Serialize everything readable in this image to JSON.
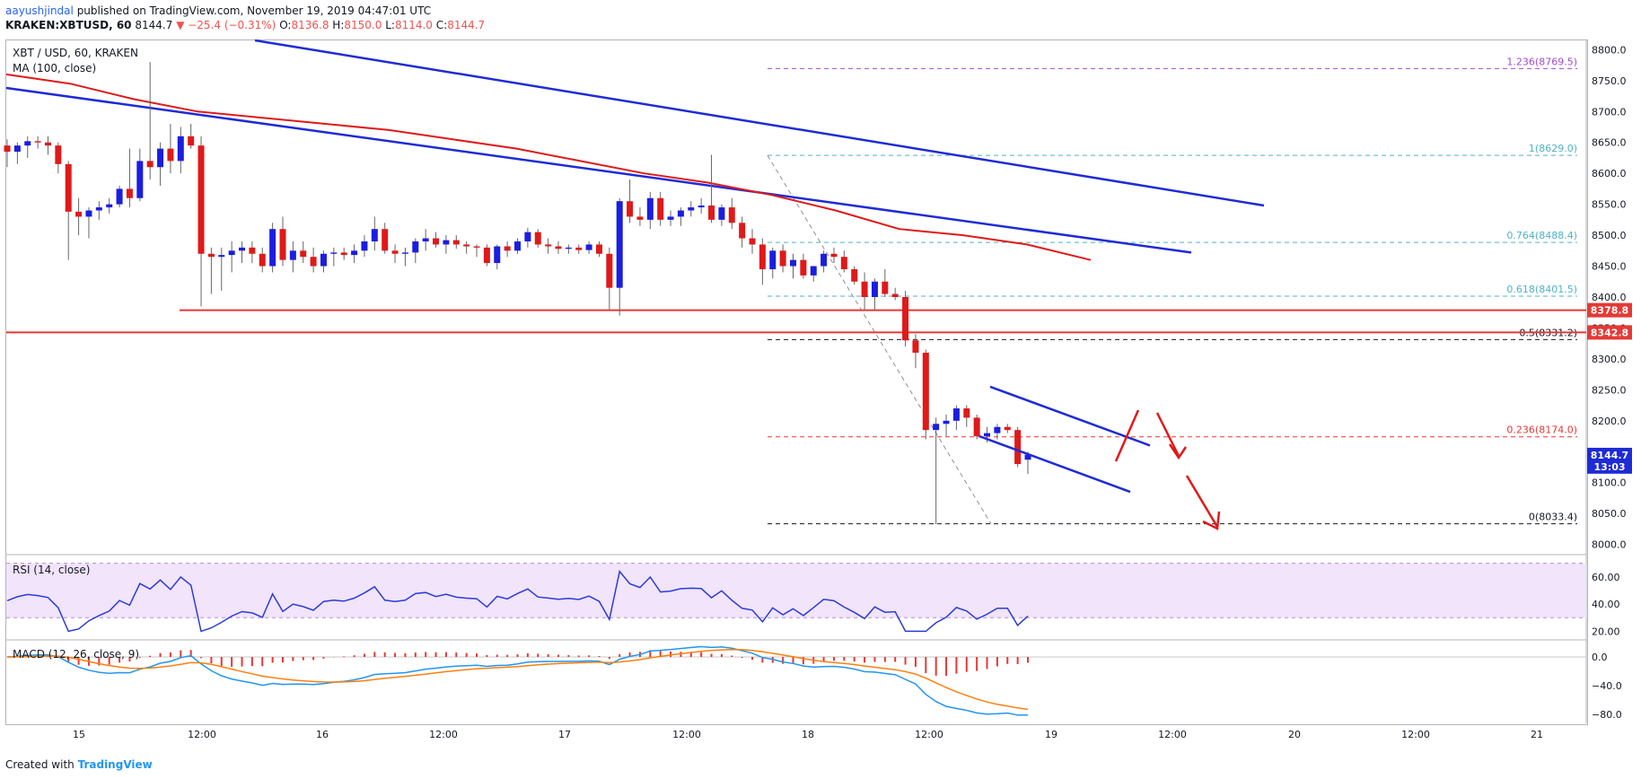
{
  "header": {
    "username": "aayushjindal",
    "published": "published on TradingView.com, November 19, 2019 04:47:01 UTC",
    "symbol": "KRAKEN:XBTUSD, 60",
    "last": "8144.7",
    "change": "▼ −25.4 (−0.31%)",
    "o_label": "O:",
    "o": "8136.8",
    "h_label": "H:",
    "h": "8150.0",
    "l_label": "L:",
    "l": "8114.0",
    "c_label": "C:",
    "c": "8144.7"
  },
  "legend": {
    "symbol": "XBT / USD, 60, KRAKEN",
    "ma": "MA (100, close)",
    "rsi": "RSI (14, close)",
    "macd": "MACD (12, 26, close, 9)"
  },
  "footer": {
    "created_with": "Created with",
    "brand": "TradingView"
  },
  "colors": {
    "up": "#1a1ee0",
    "down": "#e01919",
    "ma": "#e01919",
    "trend": "#1e2bd6",
    "fib_blue": "#4fb3c4",
    "fib_red": "#e53935",
    "fib_purple": "#a24ad0",
    "rsi_line": "#2b3bd8",
    "rsi_band": "#f1e4fb",
    "macd": "#2196f3",
    "signal": "#ff7f0e",
    "hist": "#e53935"
  },
  "chart_data": {
    "type": "candlestick",
    "symbol": "XBT / USD, 60, KRAKEN",
    "time_labels": [
      "15",
      "12:00",
      "16",
      "12:00",
      "17",
      "12:00",
      "18",
      "12:00",
      "19",
      "12:00",
      "20",
      "12:00",
      "21"
    ],
    "price_ticks": [
      "8800.0",
      "8750.0",
      "8700.0",
      "8650.0",
      "8600.0",
      "8550.0",
      "8500.0",
      "8450.0",
      "8400.0",
      "8350.0",
      "8300.0",
      "8250.0",
      "8200.0",
      "8150.0",
      "8100.0",
      "8050.0",
      "8000.0"
    ],
    "price_range": [
      7985,
      8815
    ],
    "price_labels": [
      {
        "text": "8378.8",
        "value": 8378.8,
        "color": "#e53935"
      },
      {
        "text": "8342.8",
        "value": 8342.8,
        "color": "#e53935"
      },
      {
        "text": "8144.7",
        "value": 8144.7,
        "color": "#1e2bd6"
      },
      {
        "text": "13:03",
        "value": 8126.0,
        "color": "#1e2bd6"
      }
    ],
    "fib_levels": [
      {
        "label": "1.236(8769.5)",
        "value": 8769.5,
        "color": "#a24ad0"
      },
      {
        "label": "1(8629.0)",
        "value": 8629.0,
        "color": "#4fb3c4"
      },
      {
        "label": "0.764(8488.4)",
        "value": 8488.4,
        "color": "#4fb3c4"
      },
      {
        "label": "0.618(8401.5)",
        "value": 8401.5,
        "color": "#4fb3c4"
      },
      {
        "label": "0.5(8331.2)",
        "value": 8331.2,
        "color": "#131722"
      },
      {
        "label": "0.236(8174.0)",
        "value": 8174.0,
        "color": "#e53935"
      },
      {
        "label": "0(8033.4)",
        "value": 8033.4,
        "color": "#131722"
      }
    ],
    "horizontal_lines": [
      8378.8,
      8342.8
    ],
    "candles": [
      [
        8645,
        8655,
        8610,
        8635
      ],
      [
        8635,
        8650,
        8615,
        8645
      ],
      [
        8645,
        8660,
        8625,
        8652
      ],
      [
        8652,
        8660,
        8640,
        8650
      ],
      [
        8650,
        8660,
        8630,
        8645
      ],
      [
        8645,
        8650,
        8600,
        8615
      ],
      [
        8615,
        8620,
        8460,
        8538
      ],
      [
        8538,
        8560,
        8500,
        8530
      ],
      [
        8530,
        8545,
        8495,
        8540
      ],
      [
        8540,
        8555,
        8525,
        8545
      ],
      [
        8545,
        8560,
        8535,
        8550
      ],
      [
        8550,
        8580,
        8545,
        8575
      ],
      [
        8575,
        8640,
        8545,
        8560
      ],
      [
        8560,
        8640,
        8555,
        8620
      ],
      [
        8620,
        8780,
        8590,
        8610
      ],
      [
        8610,
        8650,
        8580,
        8640
      ],
      [
        8640,
        8680,
        8600,
        8620
      ],
      [
        8620,
        8675,
        8600,
        8660
      ],
      [
        8660,
        8680,
        8640,
        8645
      ],
      [
        8645,
        8660,
        8385,
        8470
      ],
      [
        8470,
        8480,
        8405,
        8465
      ],
      [
        8465,
        8480,
        8410,
        8468
      ],
      [
        8468,
        8490,
        8440,
        8475
      ],
      [
        8475,
        8490,
        8455,
        8480
      ],
      [
        8480,
        8490,
        8455,
        8470
      ],
      [
        8470,
        8480,
        8440,
        8450
      ],
      [
        8450,
        8520,
        8440,
        8510
      ],
      [
        8510,
        8530,
        8450,
        8460
      ],
      [
        8460,
        8490,
        8440,
        8475
      ],
      [
        8475,
        8490,
        8455,
        8465
      ],
      [
        8465,
        8480,
        8440,
        8450
      ],
      [
        8450,
        8475,
        8440,
        8470
      ],
      [
        8470,
        8480,
        8450,
        8472
      ],
      [
        8472,
        8480,
        8460,
        8468
      ],
      [
        8468,
        8485,
        8455,
        8475
      ],
      [
        8475,
        8500,
        8465,
        8490
      ],
      [
        8490,
        8530,
        8475,
        8510
      ],
      [
        8510,
        8520,
        8470,
        8475
      ],
      [
        8475,
        8485,
        8455,
        8470
      ],
      [
        8470,
        8480,
        8450,
        8472
      ],
      [
        8472,
        8495,
        8455,
        8490
      ],
      [
        8490,
        8510,
        8475,
        8495
      ],
      [
        8495,
        8505,
        8480,
        8485
      ],
      [
        8485,
        8500,
        8470,
        8492
      ],
      [
        8492,
        8500,
        8478,
        8485
      ],
      [
        8485,
        8490,
        8470,
        8482
      ],
      [
        8482,
        8485,
        8465,
        8480
      ],
      [
        8480,
        8485,
        8450,
        8455
      ],
      [
        8455,
        8485,
        8445,
        8482
      ],
      [
        8482,
        8490,
        8465,
        8475
      ],
      [
        8475,
        8495,
        8470,
        8490
      ],
      [
        8490,
        8512,
        8480,
        8505
      ],
      [
        8505,
        8510,
        8480,
        8485
      ],
      [
        8485,
        8495,
        8470,
        8482
      ],
      [
        8482,
        8490,
        8470,
        8478
      ],
      [
        8478,
        8485,
        8470,
        8480
      ],
      [
        8480,
        8485,
        8470,
        8476
      ],
      [
        8476,
        8490,
        8470,
        8485
      ],
      [
        8485,
        8490,
        8465,
        8470
      ],
      [
        8470,
        8480,
        8380,
        8415
      ],
      [
        8415,
        8560,
        8370,
        8555
      ],
      [
        8555,
        8590,
        8520,
        8530
      ],
      [
        8530,
        8545,
        8515,
        8525
      ],
      [
        8525,
        8570,
        8510,
        8560
      ],
      [
        8560,
        8570,
        8515,
        8525
      ],
      [
        8525,
        8540,
        8515,
        8530
      ],
      [
        8530,
        8545,
        8515,
        8540
      ],
      [
        8540,
        8555,
        8530,
        8545
      ],
      [
        8545,
        8560,
        8535,
        8548
      ],
      [
        8548,
        8630,
        8520,
        8525
      ],
      [
        8525,
        8550,
        8515,
        8545
      ],
      [
        8545,
        8560,
        8510,
        8520
      ],
      [
        8520,
        8530,
        8480,
        8495
      ],
      [
        8495,
        8510,
        8470,
        8485
      ],
      [
        8485,
        8495,
        8420,
        8445
      ],
      [
        8445,
        8480,
        8430,
        8475
      ],
      [
        8475,
        8485,
        8440,
        8450
      ],
      [
        8450,
        8470,
        8430,
        8460
      ],
      [
        8460,
        8470,
        8430,
        8435
      ],
      [
        8435,
        8450,
        8425,
        8450
      ],
      [
        8450,
        8475,
        8440,
        8470
      ],
      [
        8470,
        8480,
        8455,
        8465
      ],
      [
        8465,
        8475,
        8440,
        8445
      ],
      [
        8445,
        8450,
        8420,
        8425
      ],
      [
        8425,
        8440,
        8380,
        8400
      ],
      [
        8400,
        8430,
        8380,
        8425
      ],
      [
        8425,
        8445,
        8400,
        8405
      ],
      [
        8405,
        8415,
        8395,
        8400
      ],
      [
        8400,
        8410,
        8320,
        8330
      ],
      [
        8330,
        8340,
        8285,
        8310
      ],
      [
        8310,
        8315,
        8170,
        8185
      ],
      [
        8185,
        8205,
        8033,
        8195
      ],
      [
        8195,
        8210,
        8175,
        8200
      ],
      [
        8200,
        8225,
        8185,
        8220
      ],
      [
        8220,
        8225,
        8190,
        8205
      ],
      [
        8205,
        8210,
        8170,
        8175
      ],
      [
        8175,
        8190,
        8165,
        8180
      ],
      [
        8180,
        8195,
        8170,
        8190
      ],
      [
        8190,
        8195,
        8180,
        8185
      ],
      [
        8185,
        8190,
        8125,
        8130
      ],
      [
        8137,
        8150,
        8114,
        8145
      ]
    ],
    "ma100": [
      8760,
      8745,
      8720,
      8700,
      8690,
      8680,
      8670,
      8655,
      8640,
      8620,
      8600,
      8585,
      8565,
      8540,
      8510,
      8500,
      8485,
      8460
    ],
    "rsi": {
      "ticks": [
        "60.00",
        "40.00",
        "20.00"
      ],
      "levels": [
        70,
        30
      ]
    },
    "macd": {
      "ticks": [
        "0.0",
        "−40.0",
        "−80.0"
      ]
    }
  }
}
